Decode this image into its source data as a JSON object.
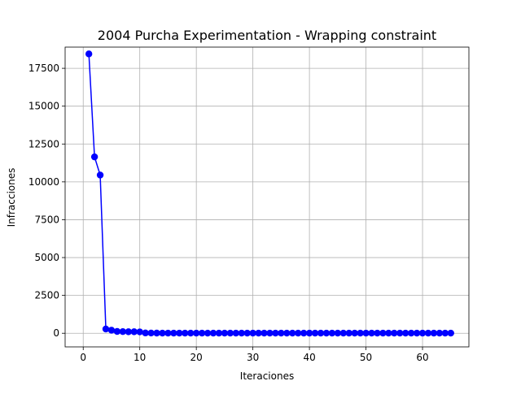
{
  "chart_data": {
    "type": "line",
    "title": "2004 Purcha Experimentation - Wrapping constraint",
    "xlabel": "Iteraciones",
    "ylabel": "Infracciones",
    "xlim": [
      -3.2,
      68.2
    ],
    "ylim": [
      -900,
      18900
    ],
    "xticks": [
      0,
      10,
      20,
      30,
      40,
      50,
      60
    ],
    "yticks": [
      0,
      2500,
      5000,
      7500,
      10000,
      12500,
      15000,
      17500
    ],
    "grid": true,
    "series": [
      {
        "color": "#0000ff",
        "marker": "circle",
        "x": [
          1,
          2,
          3,
          4,
          5,
          6,
          7,
          8,
          9,
          10,
          11,
          12,
          13,
          14,
          15,
          16,
          17,
          18,
          19,
          20,
          21,
          22,
          23,
          24,
          25,
          26,
          27,
          28,
          29,
          30,
          31,
          32,
          33,
          34,
          35,
          36,
          37,
          38,
          39,
          40,
          41,
          42,
          43,
          44,
          45,
          46,
          47,
          48,
          49,
          50,
          51,
          52,
          53,
          54,
          55,
          56,
          57,
          58,
          59,
          60,
          61,
          62,
          63,
          64,
          65
        ],
        "y": [
          18450,
          11650,
          10450,
          280,
          200,
          120,
          110,
          100,
          100,
          90,
          20,
          15,
          12,
          10,
          10,
          10,
          10,
          10,
          10,
          10,
          10,
          10,
          10,
          10,
          10,
          10,
          10,
          10,
          10,
          10,
          10,
          10,
          10,
          10,
          10,
          10,
          10,
          10,
          10,
          10,
          10,
          10,
          10,
          10,
          10,
          10,
          10,
          10,
          10,
          10,
          10,
          10,
          10,
          10,
          10,
          10,
          10,
          10,
          10,
          10,
          10,
          10,
          10,
          10,
          10
        ]
      }
    ]
  }
}
